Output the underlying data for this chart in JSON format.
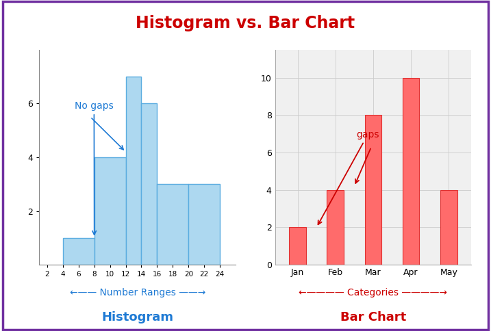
{
  "title": "Histogram vs. Bar Chart",
  "title_color": "#cc0000",
  "title_fontsize": 17,
  "background_color": "#ffffff",
  "border_color": "#7030a0",
  "hist_bar_lefts": [
    4,
    8,
    12,
    14,
    16,
    20
  ],
  "hist_bar_rights": [
    8,
    12,
    14,
    16,
    20,
    24
  ],
  "hist_bar_heights": [
    1,
    4,
    7,
    6,
    3,
    3
  ],
  "hist_bar_color": "#add8f0",
  "hist_edge_color": "#5aace0",
  "hist_xlabel": "Number Ranges",
  "hist_label": "Histogram",
  "hist_no_gaps_text": "No gaps",
  "hist_no_gaps_color": "#1e7ad4",
  "hist_xticks": [
    2,
    4,
    6,
    8,
    10,
    12,
    14,
    16,
    18,
    20,
    22,
    24
  ],
  "hist_xlim": [
    1,
    26
  ],
  "hist_ylim": [
    0,
    8
  ],
  "hist_yticks": [
    2,
    4,
    6
  ],
  "bar_categories": [
    "Jan",
    "Feb",
    "Mar",
    "Apr",
    "May"
  ],
  "bar_values": [
    2,
    4,
    8,
    10,
    4
  ],
  "bar_color": "#ff6b6b",
  "bar_edge_color": "#e03030",
  "bar_xlabel": "Categories",
  "bar_label": "Bar Chart",
  "bar_yticks": [
    0,
    2,
    4,
    6,
    8,
    10
  ],
  "bar_gaps_text": "gaps",
  "bar_gaps_color": "#cc0000",
  "label_color_blue": "#1e7ad4",
  "label_color_red": "#cc0000"
}
